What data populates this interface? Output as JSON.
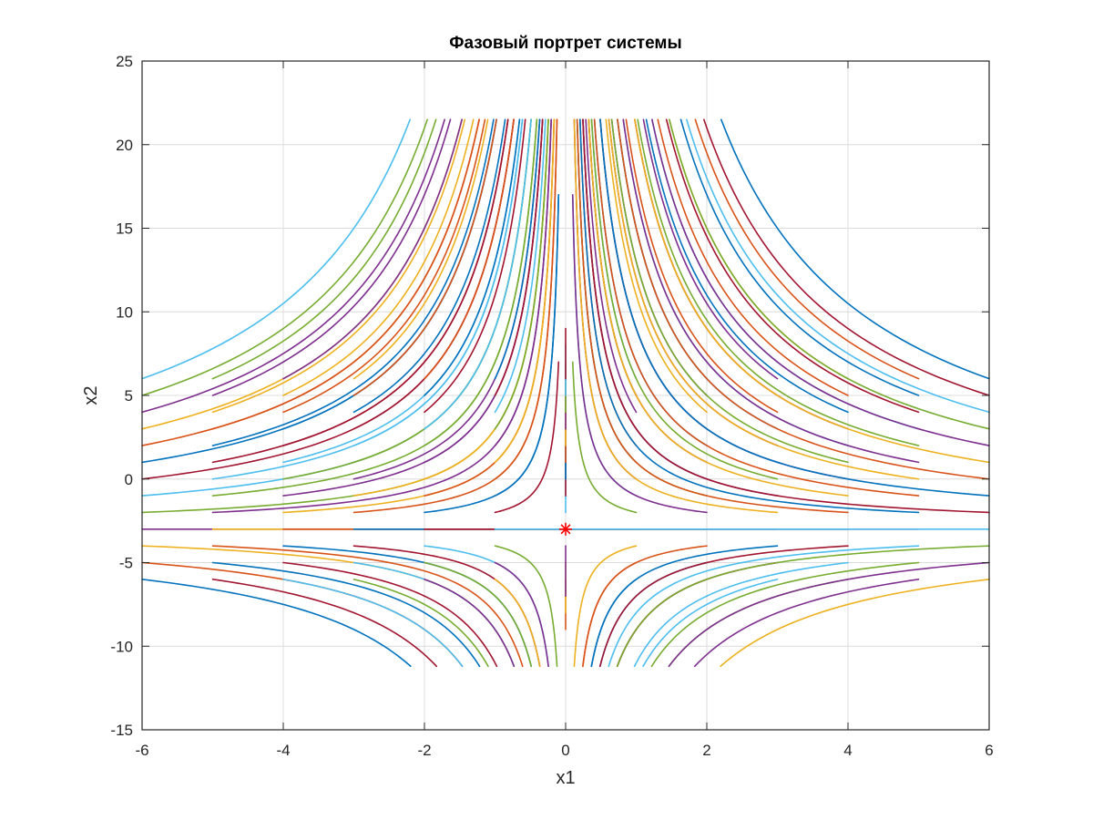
{
  "chart_data": {
    "type": "line",
    "title": "Фазовый портрет системы",
    "xlabel": "x1",
    "ylabel": "x2",
    "xlim": [
      -6,
      6
    ],
    "ylim": [
      -15,
      25
    ],
    "grid": true,
    "xticks": [
      -6,
      -4,
      -2,
      0,
      2,
      4,
      6
    ],
    "yticks": [
      -15,
      -10,
      -5,
      0,
      5,
      10,
      15,
      20,
      25
    ],
    "xtick_labels": [
      "-6",
      "-4",
      "-2",
      "0",
      "2",
      "4",
      "6"
    ],
    "ytick_labels": [
      "-15",
      "-10",
      "-5",
      "0",
      "5",
      "10",
      "15",
      "20",
      "25"
    ],
    "equilibrium": {
      "x": 0,
      "y": -3,
      "marker": "asterisk",
      "color": "#ff0000"
    },
    "y_clip": [
      -11.2,
      21.5
    ],
    "color_order": [
      "#0072BD",
      "#D95319",
      "#EDB120",
      "#7E2F8E",
      "#77AC30",
      "#4DBEEE",
      "#A2142F"
    ],
    "start_points_x": [
      -6,
      -5,
      -4,
      -3,
      -2,
      -1,
      0,
      1,
      2,
      3,
      4,
      5,
      6
    ],
    "start_points_y": [
      -6,
      -5,
      -4,
      -3,
      -2,
      -1,
      0,
      1,
      2,
      3,
      4,
      5,
      6
    ],
    "trajectory_model": "(x2 + 3) * |x1| = const; trajectories run from each start point toward x1 = 0",
    "series_count": 169
  }
}
